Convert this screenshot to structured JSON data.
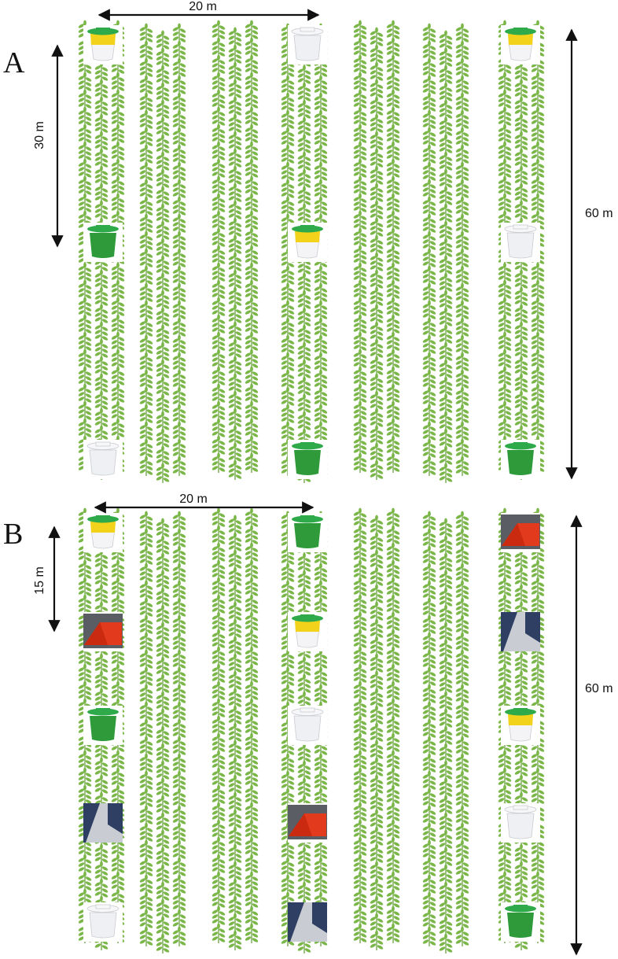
{
  "panels": [
    {
      "letter": "A",
      "dimensions": {
        "width": "20 m",
        "spacing": "30 m",
        "length": "60 m"
      },
      "traps": [
        {
          "row": 0,
          "position": 0,
          "kind": "yellow-bucket"
        },
        {
          "row": 0,
          "position": 1,
          "kind": "green-bucket"
        },
        {
          "row": 0,
          "position": 2,
          "kind": "white-bucket"
        },
        {
          "row": 1,
          "position": 0,
          "kind": "white-bucket"
        },
        {
          "row": 1,
          "position": 1,
          "kind": "yellow-bucket"
        },
        {
          "row": 1,
          "position": 2,
          "kind": "green-bucket"
        },
        {
          "row": 2,
          "position": 0,
          "kind": "yellow-bucket"
        },
        {
          "row": 2,
          "position": 1,
          "kind": "white-bucket"
        },
        {
          "row": 2,
          "position": 2,
          "kind": "green-bucket"
        }
      ]
    },
    {
      "letter": "B",
      "dimensions": {
        "width": "20 m",
        "spacing": "15 m",
        "length": "60 m"
      },
      "traps": [
        {
          "row": 0,
          "position": 0,
          "kind": "yellow-bucket"
        },
        {
          "row": 0,
          "position": 1,
          "kind": "red-delta"
        },
        {
          "row": 0,
          "position": 2,
          "kind": "green-bucket"
        },
        {
          "row": 0,
          "position": 3,
          "kind": "wing-trap"
        },
        {
          "row": 0,
          "position": 4,
          "kind": "white-bucket"
        },
        {
          "row": 1,
          "position": 0,
          "kind": "green-bucket"
        },
        {
          "row": 1,
          "position": 1,
          "kind": "yellow-bucket"
        },
        {
          "row": 1,
          "position": 2,
          "kind": "white-bucket"
        },
        {
          "row": 1,
          "position": 3,
          "kind": "red-delta"
        },
        {
          "row": 1,
          "position": 4,
          "kind": "wing-trap"
        },
        {
          "row": 2,
          "position": 0,
          "kind": "red-delta"
        },
        {
          "row": 2,
          "position": 1,
          "kind": "wing-trap"
        },
        {
          "row": 2,
          "position": 2,
          "kind": "yellow-bucket"
        },
        {
          "row": 2,
          "position": 3,
          "kind": "white-bucket"
        },
        {
          "row": 2,
          "position": 4,
          "kind": "green-bucket"
        }
      ]
    }
  ],
  "colors": {
    "plant": "#7ab648",
    "plant_dark": "#5e9a32",
    "bucket_yellow": "#f2d21b",
    "bucket_green": "#2e9a3a",
    "bucket_lid": "#2faa4a",
    "bucket_white": "#eef0f4",
    "delta_red": "#e23a1c",
    "wing_blue": "#2e3f63",
    "wing_grey": "#c9ccd2"
  }
}
